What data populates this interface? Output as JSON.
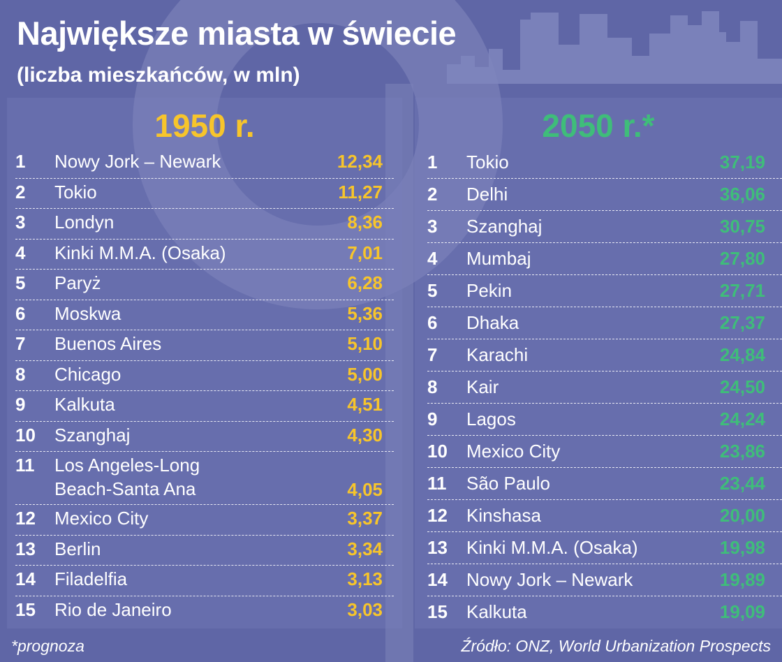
{
  "title": "Największe miasta w świecie",
  "subtitle": "(liczba mieszkańców, w mln)",
  "colors": {
    "accent_1950": "#f7c52b",
    "accent_2050": "#3fbd7a",
    "background": "#5f66a6"
  },
  "left": {
    "year_label": "1950 r.",
    "rows": [
      {
        "rank": "1",
        "city": "Nowy Jork – Newark",
        "value": "12,34"
      },
      {
        "rank": "2",
        "city": "Tokio",
        "value": "11,27"
      },
      {
        "rank": "3",
        "city": "Londyn",
        "value": "8,36"
      },
      {
        "rank": "4",
        "city": "Kinki M.M.A. (Osaka)",
        "value": "7,01"
      },
      {
        "rank": "5",
        "city": "Paryż",
        "value": "6,28"
      },
      {
        "rank": "6",
        "city": "Moskwa",
        "value": "5,36"
      },
      {
        "rank": "7",
        "city": "Buenos Aires",
        "value": "5,10"
      },
      {
        "rank": "8",
        "city": "Chicago",
        "value": "5,00"
      },
      {
        "rank": "9",
        "city": "Kalkuta",
        "value": "4,51"
      },
      {
        "rank": "10",
        "city": "Szanghaj",
        "value": "4,30"
      },
      {
        "rank": "11",
        "city": "Los Angeles-Long\nBeach-Santa Ana",
        "value": "4,05"
      },
      {
        "rank": "12",
        "city": "Mexico City",
        "value": "3,37"
      },
      {
        "rank": "13",
        "city": "Berlin",
        "value": "3,34"
      },
      {
        "rank": "14",
        "city": "Filadelfia",
        "value": "3,13"
      },
      {
        "rank": "15",
        "city": "Rio de Janeiro",
        "value": "3,03"
      }
    ]
  },
  "right": {
    "year_label": "2050 r.*",
    "rows": [
      {
        "rank": "1",
        "city": "Tokio",
        "value": "37,19"
      },
      {
        "rank": "2",
        "city": "Delhi",
        "value": "36,06"
      },
      {
        "rank": "3",
        "city": "Szanghaj",
        "value": "30,75"
      },
      {
        "rank": "4",
        "city": "Mumbaj",
        "value": "27,80"
      },
      {
        "rank": "5",
        "city": "Pekin",
        "value": "27,71"
      },
      {
        "rank": "6",
        "city": "Dhaka",
        "value": "27,37"
      },
      {
        "rank": "7",
        "city": "Karachi",
        "value": "24,84"
      },
      {
        "rank": "8",
        "city": "Kair",
        "value": "24,50"
      },
      {
        "rank": "9",
        "city": "Lagos",
        "value": "24,24"
      },
      {
        "rank": "10",
        "city": "Mexico City",
        "value": "23,86"
      },
      {
        "rank": "11",
        "city": "São Paulo",
        "value": "23,44"
      },
      {
        "rank": "12",
        "city": "Kinshasa",
        "value": "20,00"
      },
      {
        "rank": "13",
        "city": "Kinki M.M.A. (Osaka)",
        "value": "19,98"
      },
      {
        "rank": "14",
        "city": "Nowy Jork – Newark",
        "value": "19,89"
      },
      {
        "rank": "15",
        "city": "Kalkuta",
        "value": "19,09"
      }
    ]
  },
  "footnote": "*prognoza",
  "source": "Źródło: ONZ, World Urbanization Prospects"
}
